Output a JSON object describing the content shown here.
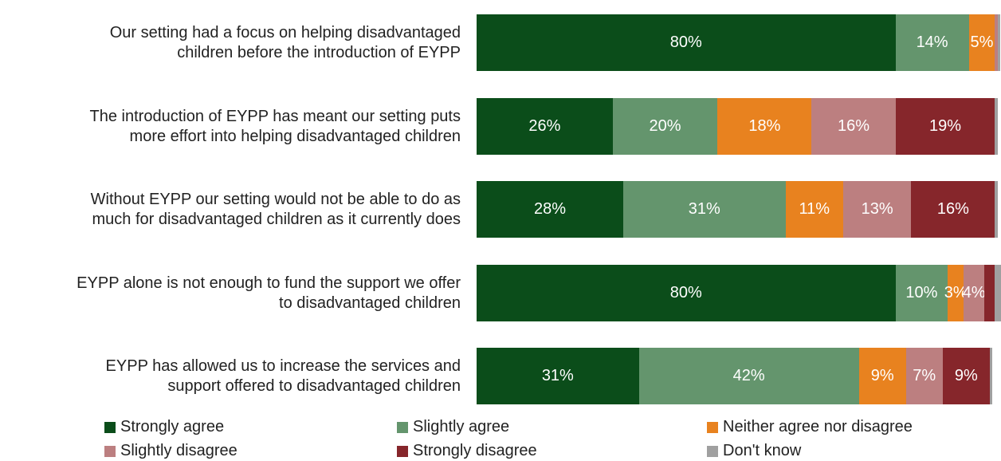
{
  "chart_data": {
    "type": "bar",
    "orientation": "horizontal",
    "stacked": true,
    "xlim": [
      0,
      100
    ],
    "unit": "%",
    "categories": [
      "Our setting had a focus on helping disadvantaged children before the introduction of EYPP",
      "The introduction of EYPP has meant our setting puts more effort into helping disadvantaged children",
      "Without EYPP our setting would not be able to do as much for disadvantaged children as it currently does",
      "EYPP alone is not enough to fund the support we offer to disadvantaged children",
      "EYPP has allowed us to increase the services and support offered to disadvantaged children"
    ],
    "category_lines": [
      [
        "Our setting had a focus on helping disadvantaged",
        "children before the introduction of EYPP"
      ],
      [
        "The introduction of EYPP has meant our setting puts",
        "more effort into helping disadvantaged children"
      ],
      [
        "Without EYPP our setting would not be able to do as",
        "much for disadvantaged children as it currently does"
      ],
      [
        "EYPP alone is not enough to fund the support we offer",
        "to disadvantaged children"
      ],
      [
        "EYPP has allowed us to increase the services and",
        "support offered to disadvantaged children"
      ]
    ],
    "series": [
      {
        "name": "Strongly agree",
        "color": "#0b4d1a",
        "values": [
          80,
          26,
          28,
          80,
          31
        ]
      },
      {
        "name": "Slightly agree",
        "color": "#64956d",
        "values": [
          14,
          20,
          31,
          10,
          42
        ]
      },
      {
        "name": "Neither agree nor disagree",
        "color": "#e8821f",
        "values": [
          5,
          18,
          11,
          3,
          9
        ]
      },
      {
        "name": "Slightly disagree",
        "color": "#bc7f80",
        "values": [
          0.6,
          16,
          13,
          4,
          7
        ]
      },
      {
        "name": "Strongly disagree",
        "color": "#86262b",
        "values": [
          0,
          19,
          16,
          2,
          9
        ]
      },
      {
        "name": "Don't know",
        "color": "#a0a0a0",
        "values": [
          0.4,
          0.6,
          0.5,
          1.5,
          0.5
        ]
      }
    ],
    "data_labels": [
      [
        "80%",
        "14%",
        "5%",
        "",
        "",
        ""
      ],
      [
        "26%",
        "20%",
        "18%",
        "16%",
        "19%",
        ""
      ],
      [
        "28%",
        "31%",
        "11%",
        "13%",
        "16%",
        ""
      ],
      [
        "80%",
        "10%",
        "3%",
        "4%",
        "",
        ""
      ],
      [
        "31%",
        "42%",
        "9%",
        "7%",
        "9%",
        ""
      ]
    ],
    "legend_position": "bottom",
    "grid": false
  }
}
